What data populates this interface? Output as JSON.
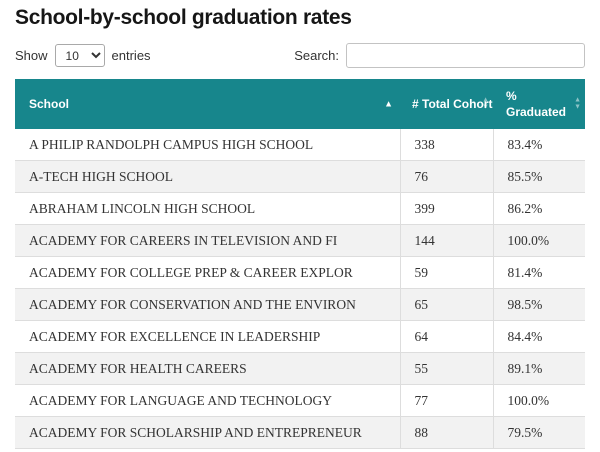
{
  "page": {
    "title": "School-by-school graduation rates"
  },
  "controls": {
    "show_label": "Show",
    "entries_value": "10",
    "entries_suffix": "entries",
    "search_label": "Search:",
    "search_value": ""
  },
  "table": {
    "columns": [
      {
        "label": "School",
        "sort": "asc"
      },
      {
        "label": "# Total Cohort",
        "sort": "none"
      },
      {
        "label": "% Graduated",
        "sort": "none"
      }
    ],
    "rows": [
      {
        "school": "A PHILIP RANDOLPH CAMPUS HIGH SCHOOL",
        "total_cohort": "338",
        "pct_graduated": "83.4%"
      },
      {
        "school": "A-TECH HIGH SCHOOL",
        "total_cohort": "76",
        "pct_graduated": "85.5%"
      },
      {
        "school": "ABRAHAM LINCOLN HIGH SCHOOL",
        "total_cohort": "399",
        "pct_graduated": "86.2%"
      },
      {
        "school": "ACADEMY FOR CAREERS IN TELEVISION AND FI",
        "total_cohort": "144",
        "pct_graduated": "100.0%"
      },
      {
        "school": "ACADEMY FOR COLLEGE PREP & CAREER EXPLOR",
        "total_cohort": "59",
        "pct_graduated": "81.4%"
      },
      {
        "school": "ACADEMY FOR CONSERVATION AND THE ENVIRON",
        "total_cohort": "65",
        "pct_graduated": "98.5%"
      },
      {
        "school": "ACADEMY FOR EXCELLENCE IN LEADERSHIP",
        "total_cohort": "64",
        "pct_graduated": "84.4%"
      },
      {
        "school": "ACADEMY FOR HEALTH CAREERS",
        "total_cohort": "55",
        "pct_graduated": "89.1%"
      },
      {
        "school": "ACADEMY FOR LANGUAGE AND TECHNOLOGY",
        "total_cohort": "77",
        "pct_graduated": "100.0%"
      },
      {
        "school": "ACADEMY FOR SCHOLARSHIP AND ENTREPRENEUR",
        "total_cohort": "88",
        "pct_graduated": "79.5%"
      }
    ]
  },
  "colors": {
    "header_bg": "#17868c",
    "stripe": "#f2f2f2",
    "border": "#dddddd"
  },
  "icons": {
    "sort_ascending": "▲",
    "sort_up": "▲",
    "sort_down": "▼",
    "select_chevron": "▾"
  }
}
